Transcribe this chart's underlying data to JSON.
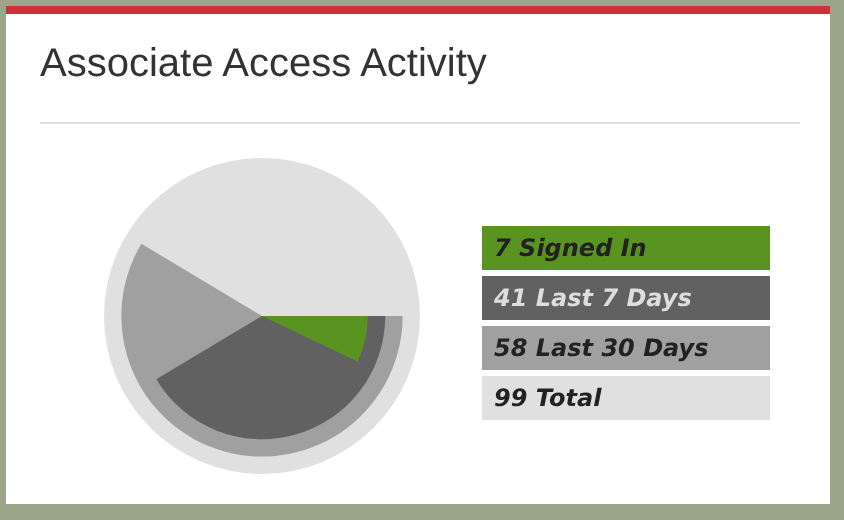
{
  "chart_data": {
    "type": "other",
    "title": "Associate Access Activity",
    "categories": [
      "Signed In",
      "Last 7 Days",
      "Last 30 Days",
      "Total"
    ],
    "values": [
      7,
      41,
      58,
      99
    ],
    "colors": [
      "#5a9420",
      "#616161",
      "#a0a0a0",
      "#e0e0e0"
    ],
    "data_labels": true
  }
}
